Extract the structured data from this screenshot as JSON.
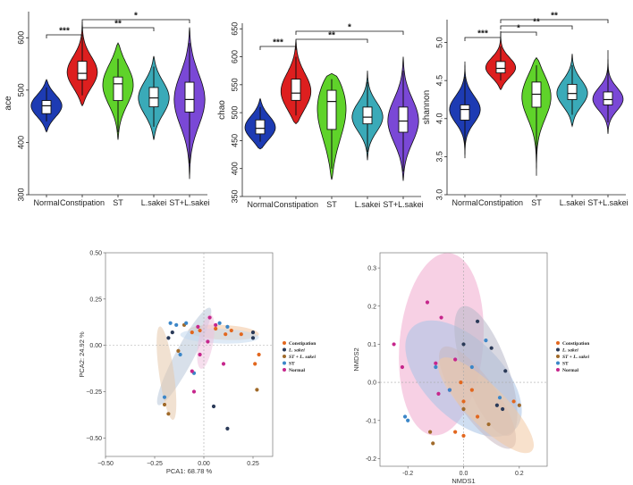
{
  "palette": {
    "Normal": "#1d3bb3",
    "Constipation": "#dd1f1f",
    "ST": "#5fd32a",
    "L.sakei": "#3aaab8",
    "ST+L.sakei": "#7a48d6"
  },
  "chart_data": [
    {
      "type": "violin",
      "title": "",
      "xlabel": "",
      "ylabel": "ace",
      "categories": [
        "Normal",
        "Constipation",
        "ST",
        "L.sakei",
        "ST+L.sakei"
      ],
      "ylim": [
        300,
        650
      ],
      "yticks": [
        300,
        400,
        500,
        600
      ],
      "groups": [
        {
          "name": "Normal",
          "min": 420,
          "q1": 455,
          "median": 470,
          "q3": 480,
          "max": 520,
          "wmin": 440,
          "wmax": 505
        },
        {
          "name": "Constipation",
          "min": 470,
          "q1": 520,
          "median": 532,
          "q3": 555,
          "max": 630,
          "wmin": 490,
          "wmax": 600
        },
        {
          "name": "ST",
          "min": 405,
          "q1": 480,
          "median": 512,
          "q3": 525,
          "max": 590,
          "wmin": 420,
          "wmax": 560
        },
        {
          "name": "L.sakei",
          "min": 405,
          "q1": 468,
          "median": 485,
          "q3": 505,
          "max": 565,
          "wmin": 430,
          "wmax": 545
        },
        {
          "name": "ST+L.sakei",
          "min": 330,
          "q1": 458,
          "median": 482,
          "q3": 515,
          "max": 620,
          "wmin": 360,
          "wmax": 590
        }
      ],
      "significance": [
        {
          "from": "Normal",
          "to": "Constipation",
          "label": "***"
        },
        {
          "from": "Constipation",
          "to": "L.sakei",
          "label": "**"
        },
        {
          "from": "Constipation",
          "to": "ST+L.sakei",
          "label": "*"
        }
      ]
    },
    {
      "type": "violin",
      "title": "",
      "xlabel": "",
      "ylabel": "chao",
      "categories": [
        "Normal",
        "Constipation",
        "ST",
        "L.sakei",
        "ST+L.sakei"
      ],
      "ylim": [
        350,
        660
      ],
      "yticks": [
        350,
        400,
        450,
        500,
        550,
        600,
        650
      ],
      "groups": [
        {
          "name": "Normal",
          "min": 435,
          "q1": 462,
          "median": 472,
          "q3": 487,
          "max": 525,
          "wmin": 448,
          "wmax": 510
        },
        {
          "name": "Constipation",
          "min": 480,
          "q1": 522,
          "median": 535,
          "q3": 560,
          "max": 630,
          "wmin": 495,
          "wmax": 600
        },
        {
          "name": "ST",
          "min": 380,
          "q1": 470,
          "median": 520,
          "q3": 540,
          "max": 570,
          "wmin": 400,
          "wmax": 560
        },
        {
          "name": "L.sakei",
          "min": 415,
          "q1": 480,
          "median": 492,
          "q3": 510,
          "max": 575,
          "wmin": 430,
          "wmax": 555
        },
        {
          "name": "ST+L.sakei",
          "min": 378,
          "q1": 465,
          "median": 485,
          "q3": 510,
          "max": 600,
          "wmin": 395,
          "wmax": 575
        }
      ],
      "significance": [
        {
          "from": "Normal",
          "to": "Constipation",
          "label": "***"
        },
        {
          "from": "Constipation",
          "to": "L.sakei",
          "label": "**"
        },
        {
          "from": "Constipation",
          "to": "ST+L.sakei",
          "label": "*"
        }
      ]
    },
    {
      "type": "violin",
      "title": "",
      "xlabel": "",
      "ylabel": "shannon",
      "categories": [
        "Normal",
        "Constipation",
        "ST",
        "L.sakei",
        "ST+L.sakei"
      ],
      "ylim": [
        3.0,
        5.3
      ],
      "yticks": [
        3.0,
        3.5,
        4.0,
        4.5,
        5.0
      ],
      "groups": [
        {
          "name": "Normal",
          "min": 3.48,
          "q1": 3.98,
          "median": 4.12,
          "q3": 4.18,
          "max": 4.75,
          "wmin": 3.65,
          "wmax": 4.55
        },
        {
          "name": "Constipation",
          "min": 4.38,
          "q1": 4.6,
          "median": 4.66,
          "q3": 4.75,
          "max": 5.15,
          "wmin": 4.5,
          "wmax": 4.95
        },
        {
          "name": "ST",
          "min": 3.25,
          "q1": 4.15,
          "median": 4.32,
          "q3": 4.48,
          "max": 4.8,
          "wmin": 3.5,
          "wmax": 4.7
        },
        {
          "name": "L.sakei",
          "min": 3.9,
          "q1": 4.25,
          "median": 4.33,
          "q3": 4.45,
          "max": 4.85,
          "wmin": 4.05,
          "wmax": 4.7
        },
        {
          "name": "ST+L.sakei",
          "min": 3.8,
          "q1": 4.18,
          "median": 4.25,
          "q3": 4.35,
          "max": 4.9,
          "wmin": 3.95,
          "wmax": 4.65
        }
      ],
      "significance": [
        {
          "from": "Normal",
          "to": "Constipation",
          "label": "***"
        },
        {
          "from": "Constipation",
          "to": "ST",
          "label": "*"
        },
        {
          "from": "Constipation",
          "to": "L.sakei",
          "label": "**"
        },
        {
          "from": "Constipation",
          "to": "ST+L.sakei",
          "label": "**"
        }
      ]
    },
    {
      "type": "scatter",
      "title": "",
      "xlabel": "PCA1: 68.78 %",
      "ylabel": "PCA2: 24.92 %",
      "xlim": [
        -0.5,
        0.35
      ],
      "ylim": [
        -0.6,
        0.5
      ],
      "xticks": [
        -0.5,
        -0.25,
        0.0,
        0.25
      ],
      "xticklabels": [
        "−0.50",
        "−0.25",
        "0.00",
        "0.25"
      ],
      "yticks": [
        -0.5,
        -0.25,
        0.0,
        0.25,
        0.5
      ],
      "yticklabels": [
        "−0.50",
        "−0.25",
        "0.00",
        "0.25",
        "0.50"
      ],
      "legend": {
        "position": "right",
        "entries": [
          {
            "name": "Constipation",
            "color": "#e2671e"
          },
          {
            "name": "L. sakei",
            "color": "#2a3a58"
          },
          {
            "name": "ST + L. sakei",
            "color": "#a06a2a"
          },
          {
            "name": "ST",
            "color": "#3b86c8"
          },
          {
            "name": "Normal",
            "color": "#c6268c"
          }
        ]
      },
      "ellipses": [
        {
          "group": "Constipation",
          "cx": 0.1,
          "cy": 0.07,
          "rx": 0.18,
          "ry": 0.04,
          "angle": -3,
          "color": "#f2c49c"
        },
        {
          "group": "L. sakei",
          "cx": -0.1,
          "cy": -0.06,
          "rx": 0.28,
          "ry": 0.05,
          "angle": 62,
          "color": "#b8c6d8"
        },
        {
          "group": "ST + L. sakei",
          "cx": -0.19,
          "cy": -0.15,
          "rx": 0.24,
          "ry": 0.04,
          "angle": -82,
          "color": "#e6c9ac"
        },
        {
          "group": "ST",
          "cx": 0.08,
          "cy": 0.05,
          "rx": 0.2,
          "ry": 0.04,
          "angle": -2,
          "color": "#c3d9ef"
        },
        {
          "group": "Normal",
          "cx": 0.01,
          "cy": 0.02,
          "rx": 0.14,
          "ry": 0.04,
          "angle": 80,
          "color": "#efc2de"
        }
      ],
      "points": [
        {
          "group": "Constipation",
          "x": 0.11,
          "y": 0.06
        },
        {
          "group": "Constipation",
          "x": 0.19,
          "y": 0.06
        },
        {
          "group": "Constipation",
          "x": 0.14,
          "y": 0.08
        },
        {
          "group": "Constipation",
          "x": 0.06,
          "y": 0.09
        },
        {
          "group": "Constipation",
          "x": -0.02,
          "y": 0.08
        },
        {
          "group": "Constipation",
          "x": -0.06,
          "y": 0.07
        },
        {
          "group": "Constipation",
          "x": 0.28,
          "y": -0.05
        },
        {
          "group": "Constipation",
          "x": 0.26,
          "y": -0.1
        },
        {
          "group": "L. sakei",
          "x": 0.25,
          "y": 0.07
        },
        {
          "group": "L. sakei",
          "x": 0.25,
          "y": 0.04
        },
        {
          "group": "L. sakei",
          "x": -0.18,
          "y": 0.04
        },
        {
          "group": "L. sakei",
          "x": -0.16,
          "y": 0.07
        },
        {
          "group": "L. sakei",
          "x": 0.05,
          "y": -0.33
        },
        {
          "group": "L. sakei",
          "x": 0.12,
          "y": -0.45
        },
        {
          "group": "ST + L. sakei",
          "x": -0.2,
          "y": -0.32
        },
        {
          "group": "ST + L. sakei",
          "x": -0.18,
          "y": -0.37
        },
        {
          "group": "ST + L. sakei",
          "x": -0.13,
          "y": -0.03
        },
        {
          "group": "ST + L. sakei",
          "x": 0.27,
          "y": -0.24
        },
        {
          "group": "ST + L. sakei",
          "x": -0.1,
          "y": 0.11
        },
        {
          "group": "ST",
          "x": -0.17,
          "y": 0.12
        },
        {
          "group": "ST",
          "x": -0.14,
          "y": 0.11
        },
        {
          "group": "ST",
          "x": -0.09,
          "y": 0.12
        },
        {
          "group": "ST",
          "x": 0.08,
          "y": 0.12
        },
        {
          "group": "ST",
          "x": -0.12,
          "y": -0.05
        },
        {
          "group": "ST",
          "x": -0.2,
          "y": -0.28
        },
        {
          "group": "ST",
          "x": 0.12,
          "y": 0.1
        },
        {
          "group": "ST",
          "x": -0.05,
          "y": -0.15
        },
        {
          "group": "Normal",
          "x": 0.03,
          "y": 0.15
        },
        {
          "group": "Normal",
          "x": -0.03,
          "y": 0.1
        },
        {
          "group": "Normal",
          "x": 0.02,
          "y": 0.02
        },
        {
          "group": "Normal",
          "x": -0.02,
          "y": -0.05
        },
        {
          "group": "Normal",
          "x": -0.06,
          "y": -0.14
        },
        {
          "group": "Normal",
          "x": 0.1,
          "y": -0.1
        },
        {
          "group": "Normal",
          "x": -0.05,
          "y": -0.25
        },
        {
          "group": "Normal",
          "x": 0.06,
          "y": 0.11
        }
      ]
    },
    {
      "type": "scatter",
      "title": "",
      "xlabel": "NMDS1",
      "ylabel": "NMDS2",
      "xlim": [
        -0.3,
        0.3
      ],
      "ylim": [
        -0.22,
        0.34
      ],
      "xticks": [
        -0.2,
        0.0,
        0.2
      ],
      "xticklabels": [
        "-0.2",
        "0.0",
        "0.2"
      ],
      "yticks": [
        -0.2,
        -0.1,
        0.0,
        0.1,
        0.2,
        0.3
      ],
      "yticklabels": [
        "-0.2",
        "-0.1",
        "0.0",
        "0.1",
        "0.2",
        "0.3"
      ],
      "legend": {
        "position": "right",
        "entries": [
          {
            "name": "Constipation",
            "color": "#e2671e"
          },
          {
            "name": "L. sakei",
            "color": "#2a3a58"
          },
          {
            "name": "ST + L. sakei",
            "color": "#a06a2a"
          },
          {
            "name": "ST",
            "color": "#3b86c8"
          },
          {
            "name": "Normal",
            "color": "#c6268c"
          }
        ]
      },
      "ellipses": [
        {
          "group": "Normal",
          "cx": -0.08,
          "cy": 0.1,
          "rx": 0.15,
          "ry": 0.24,
          "angle": -5,
          "color": "#f0a9cd"
        },
        {
          "group": "ST",
          "cx": 0.0,
          "cy": 0.01,
          "rx": 0.14,
          "ry": 0.19,
          "angle": 45,
          "color": "#a8c2e6"
        },
        {
          "group": "L. sakei",
          "cx": 0.08,
          "cy": 0.03,
          "rx": 0.08,
          "ry": 0.18,
          "angle": 20,
          "color": "#b8b8c8"
        },
        {
          "group": "ST + L. sakei",
          "cx": 0.05,
          "cy": -0.04,
          "rx": 0.07,
          "ry": 0.16,
          "angle": 35,
          "color": "#c8b8c0"
        },
        {
          "group": "Constipation",
          "cx": 0.08,
          "cy": -0.06,
          "rx": 0.07,
          "ry": 0.17,
          "angle": 45,
          "color": "#f3c9a3"
        }
      ],
      "points": [
        {
          "group": "Normal",
          "x": -0.13,
          "y": 0.21
        },
        {
          "group": "Normal",
          "x": -0.08,
          "y": 0.17
        },
        {
          "group": "Normal",
          "x": -0.25,
          "y": 0.1
        },
        {
          "group": "Normal",
          "x": -0.22,
          "y": 0.04
        },
        {
          "group": "Normal",
          "x": -0.03,
          "y": 0.06
        },
        {
          "group": "Normal",
          "x": -0.1,
          "y": 0.05
        },
        {
          "group": "Normal",
          "x": -0.05,
          "y": -0.02
        },
        {
          "group": "Normal",
          "x": -0.09,
          "y": -0.03
        },
        {
          "group": "ST",
          "x": -0.21,
          "y": -0.09
        },
        {
          "group": "ST",
          "x": -0.2,
          "y": -0.1
        },
        {
          "group": "ST",
          "x": -0.1,
          "y": 0.04
        },
        {
          "group": "ST",
          "x": 0.08,
          "y": 0.11
        },
        {
          "group": "ST",
          "x": 0.13,
          "y": -0.04
        },
        {
          "group": "ST",
          "x": -0.05,
          "y": -0.02
        },
        {
          "group": "ST",
          "x": 0.03,
          "y": 0.04
        },
        {
          "group": "L. sakei",
          "x": 0.05,
          "y": 0.16
        },
        {
          "group": "L. sakei",
          "x": 0.15,
          "y": 0.03
        },
        {
          "group": "L. sakei",
          "x": 0.1,
          "y": 0.09
        },
        {
          "group": "L. sakei",
          "x": 0.0,
          "y": 0.1
        },
        {
          "group": "L. sakei",
          "x": 0.12,
          "y": -0.06
        },
        {
          "group": "L. sakei",
          "x": 0.14,
          "y": -0.07
        },
        {
          "group": "ST + L. sakei",
          "x": -0.12,
          "y": -0.13
        },
        {
          "group": "ST + L. sakei",
          "x": -0.11,
          "y": -0.16
        },
        {
          "group": "ST + L. sakei",
          "x": 0.0,
          "y": -0.07
        },
        {
          "group": "ST + L. sakei",
          "x": 0.09,
          "y": -0.11
        },
        {
          "group": "ST + L. sakei",
          "x": 0.2,
          "y": -0.06
        },
        {
          "group": "Constipation",
          "x": -0.01,
          "y": 0.0
        },
        {
          "group": "Constipation",
          "x": 0.03,
          "y": -0.02
        },
        {
          "group": "Constipation",
          "x": 0.0,
          "y": -0.05
        },
        {
          "group": "Constipation",
          "x": 0.05,
          "y": -0.09
        },
        {
          "group": "Constipation",
          "x": -0.03,
          "y": -0.13
        },
        {
          "group": "Constipation",
          "x": 0.0,
          "y": -0.14
        },
        {
          "group": "Constipation",
          "x": 0.18,
          "y": -0.05
        }
      ]
    }
  ]
}
